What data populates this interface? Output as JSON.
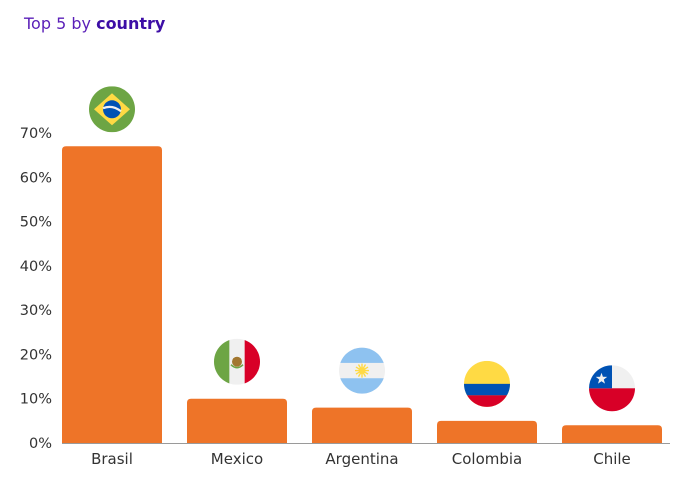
{
  "title": {
    "prefix": "Top 5 by",
    "emphasis": "country"
  },
  "colors": {
    "bar": "#ee7428",
    "title": "#5a1fb8",
    "axis": "#9a9a9a"
  },
  "chart_data": {
    "type": "bar",
    "categories": [
      "Brasil",
      "Mexico",
      "Argentina",
      "Colombia",
      "Chile"
    ],
    "values": [
      67,
      10,
      8,
      5,
      4
    ],
    "flag_icons": [
      "brazil-flag-icon",
      "mexico-flag-icon",
      "argentina-flag-icon",
      "colombia-flag-icon",
      "chile-flag-icon"
    ],
    "y_ticks": [
      "0%",
      "10%",
      "20%",
      "30%",
      "40%",
      "50%",
      "60%",
      "70%"
    ],
    "ylim": [
      0,
      70
    ],
    "ylabel": "",
    "xlabel": "",
    "grid": false,
    "legend": "none"
  }
}
